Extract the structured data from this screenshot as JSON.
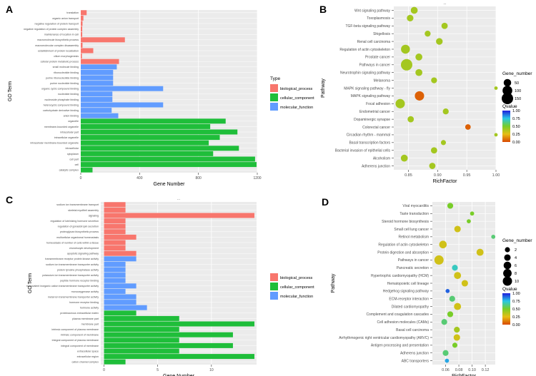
{
  "panel_letters": [
    "A",
    "B",
    "C",
    "D"
  ],
  "colors": {
    "bp": "#f8766d",
    "cc": "#1fbe3a",
    "mf": "#619cff",
    "panel_bg": "#ebebeb",
    "grid": "#ffffff"
  },
  "chart_data": [
    {
      "type": "bar",
      "panel": "A",
      "orientation": "horizontal",
      "xlabel": "Gene Number",
      "ylabel": "GO Term",
      "xlim": [
        0,
        1200
      ],
      "xticks": [
        0,
        400,
        800,
        1200
      ],
      "legend_title": "Type",
      "legend": [
        "biological_process",
        "cellular_component",
        "molecular_function"
      ],
      "categories": [
        "translation",
        "organic anion transport",
        "negative regulation of protein transport",
        "negative regulation of protein complex assembly",
        "maintenance of location in cell",
        "macromolecule biosynthetic process",
        "macromolecular complex disassembly",
        "establishment of protein localization",
        "cilium morphogenesis",
        "cellular protein metabolic process",
        "small molecule binding",
        "ribonucleotide binding",
        "purine ribonucleotide binding",
        "purine nucleotide binding",
        "organic cyclic compound binding",
        "nucleotide binding",
        "nucleoside phosphate binding",
        "heterocyclic compound binding",
        "carbohydrate derivative binding",
        "anion binding",
        "organelle",
        "membrane-bounded organelle",
        "intracellular part",
        "intracellular organelle",
        "intracellular membrane-bounded organelle",
        "intracellular",
        "cytoplasm",
        "cell part",
        "cell",
        "catalytic complex"
      ],
      "values": [
        40,
        18,
        12,
        10,
        10,
        300,
        12,
        85,
        8,
        260,
        245,
        220,
        220,
        220,
        560,
        215,
        215,
        560,
        210,
        255,
        985,
        880,
        1065,
        945,
        870,
        1075,
        900,
        1185,
        1195,
        80
      ],
      "groups": [
        "bp",
        "bp",
        "bp",
        "bp",
        "bp",
        "bp",
        "bp",
        "bp",
        "bp",
        "bp",
        "mf",
        "mf",
        "mf",
        "mf",
        "mf",
        "mf",
        "mf",
        "mf",
        "mf",
        "mf",
        "cc",
        "cc",
        "cc",
        "cc",
        "cc",
        "cc",
        "cc",
        "cc",
        "cc",
        "cc"
      ]
    },
    {
      "type": "scatter",
      "panel": "B",
      "title": "...",
      "xlabel": "RichFactor",
      "ylabel": "Pathway",
      "xlim": [
        0.825,
        1.0
      ],
      "xticks": [
        0.85,
        0.9,
        0.95,
        1.0
      ],
      "xtick_labels": [
        "0.85",
        "0.90",
        "0.95",
        "1.00"
      ],
      "size_legend_title": "Gene_number",
      "size_legend": [
        50,
        100,
        150
      ],
      "color_legend_title": "Qvalue",
      "color_ticks": [
        1.0,
        0.75,
        0.5,
        0.25,
        0.0
      ],
      "color_tick_labels": [
        "1.00",
        "0.75",
        "0.50",
        "0.25",
        "0.00"
      ],
      "categories": [
        "Wnt signaling pathway",
        "Toxoplasmosis",
        "TGF-beta signaling pathway",
        "Shigellosis",
        "Renal cell carcinoma",
        "Regulation of actin cytoskeleton",
        "Prostate cancer",
        "Pathways in cancer",
        "Neurotrophin signaling pathway",
        "Melanoma",
        "MAPK signaling pathway - fly",
        "MAPK signaling pathway",
        "Focal adhesion",
        "Endometrial cancer",
        "Dopaminergic synapse",
        "Colorectal cancer",
        "Circadian rhythm - mammal",
        "Basal transcription factors",
        "Bacterial invasion of epithelial cells",
        "Alcoholism",
        "Adherens junction"
      ],
      "x": [
        0.86,
        0.853,
        0.912,
        0.883,
        0.903,
        0.845,
        0.868,
        0.847,
        0.868,
        0.894,
        1.0,
        0.869,
        0.836,
        0.914,
        0.854,
        0.952,
        1.0,
        0.91,
        0.894,
        0.843,
        0.891
      ],
      "size": [
        40,
        35,
        30,
        25,
        35,
        80,
        40,
        150,
        40,
        25,
        3,
        90,
        90,
        25,
        30,
        20,
        3,
        15,
        30,
        40,
        30
      ],
      "qvalue": [
        0.4,
        0.4,
        0.4,
        0.4,
        0.4,
        0.4,
        0.4,
        0.4,
        0.4,
        0.4,
        0.4,
        0.05,
        0.4,
        0.4,
        0.4,
        0.05,
        0.4,
        0.4,
        0.4,
        0.4,
        0.4
      ]
    },
    {
      "type": "bar",
      "panel": "C",
      "title": "...",
      "orientation": "horizontal",
      "xlabel": "Gene Number",
      "ylabel": "GO Term",
      "xlim": [
        -0.3,
        14.2
      ],
      "xticks": [
        0,
        5,
        10
      ],
      "legend": [
        "biological_process",
        "cellular_component",
        "molecular_function"
      ],
      "categories": [
        "sodium ion transmembrane transport",
        "skeletal myofibril assembly",
        "signaling",
        "regulation of luteinizing hormone secretion",
        "regulation of gonadotropin secretion",
        "proteoglycan biosynthetic process",
        "multicellular organismal homeostasis",
        "homeostasis of number of cells within a tissue",
        "chondrocyte development",
        "apoptotic signaling pathway",
        "transmembrane receptor protein kinase activity",
        "sodium ion transmembrane transporter activity",
        "protein tyrosine phosphatase activity",
        "potassium ion transmembrane transporter activity",
        "peptide hormone receptor binding",
        "monovalent inorganic cation transmembrane transporter activity",
        "monooxygenase activity",
        "metal ion transmembrane transporter activity",
        "hormone receptor binding",
        "hormone activity",
        "proteinaceous extracellular matrix",
        "plasma membrane part",
        "membrane part",
        "intrinsic component of plasma membrane",
        "intrinsic component of membrane",
        "integral component of plasma membrane",
        "integral component of membrane",
        "extracellular space",
        "extracellular region",
        "cation channel complex"
      ],
      "values": [
        2,
        2,
        14,
        2,
        2,
        2,
        3,
        2,
        2,
        3,
        3,
        2,
        2,
        2,
        2,
        3,
        2,
        3,
        3,
        4,
        3,
        7,
        14,
        7,
        12,
        7,
        12,
        7,
        14,
        2
      ],
      "groups": [
        "bp",
        "bp",
        "bp",
        "bp",
        "bp",
        "bp",
        "bp",
        "bp",
        "bp",
        "bp",
        "mf",
        "mf",
        "mf",
        "mf",
        "mf",
        "mf",
        "mf",
        "mf",
        "mf",
        "mf",
        "cc",
        "cc",
        "cc",
        "cc",
        "cc",
        "cc",
        "cc",
        "cc",
        "cc",
        "cc"
      ]
    },
    {
      "type": "scatter",
      "panel": "D",
      "xlabel": "RichFactor",
      "ylabel": "Pathway",
      "xlim": [
        0.04,
        0.135
      ],
      "xticks": [
        0.06,
        0.08,
        0.1,
        0.12
      ],
      "xtick_labels": [
        "0.06",
        "0.08",
        "0.10",
        "0.12"
      ],
      "size_legend_title": "Gene_number",
      "size_legend": [
        2,
        4,
        6,
        8,
        10
      ],
      "color_legend_title": "Qvalue",
      "color_ticks": [
        1.0,
        0.75,
        0.5,
        0.25,
        0.0
      ],
      "color_tick_labels": [
        "1.00",
        "0.75",
        "0.50",
        "0.25",
        "0.00"
      ],
      "categories": [
        "Viral myocarditis",
        "Taste transduction",
        "Steroid hormone biosynthesis",
        "Small cell lung cancer",
        "Retinol metabolism",
        "Regulation of actin cytoskeleton",
        "Protein digestion and absorption",
        "Pathways in cancer",
        "Pancreatic secretion",
        "Hypertrophic cardiomyopathy (HCM)",
        "Hematopoietic cell lineage",
        "Hedgehog signaling pathway",
        "ECM-receptor interaction",
        "Dilated cardiomyopathy",
        "Complement and coagulation cascades",
        "Cell adhesion molecules (CAMs)",
        "Basal cell carcinoma",
        "Arrhythmogenic right ventricular cardiomyopathy (ARVC)",
        "Antigen processing and presentation",
        "Adherens junction",
        "ABC transporters"
      ],
      "x": [
        0.067,
        0.1,
        0.095,
        0.078,
        0.132,
        0.056,
        0.112,
        0.05,
        0.074,
        0.078,
        0.089,
        0.063,
        0.07,
        0.078,
        0.067,
        0.058,
        0.077,
        0.077,
        0.074,
        0.06,
        0.062
      ],
      "size": [
        3,
        1,
        1,
        4,
        1,
        6,
        5,
        10,
        3,
        5,
        4,
        1,
        3,
        5,
        3,
        3,
        3,
        4,
        2,
        3,
        1
      ],
      "qvalue": [
        0.5,
        0.5,
        0.5,
        0.3,
        0.6,
        0.3,
        0.3,
        0.3,
        0.7,
        0.3,
        0.3,
        0.9,
        0.6,
        0.3,
        0.5,
        0.6,
        0.4,
        0.3,
        0.5,
        0.6,
        0.8
      ]
    }
  ]
}
